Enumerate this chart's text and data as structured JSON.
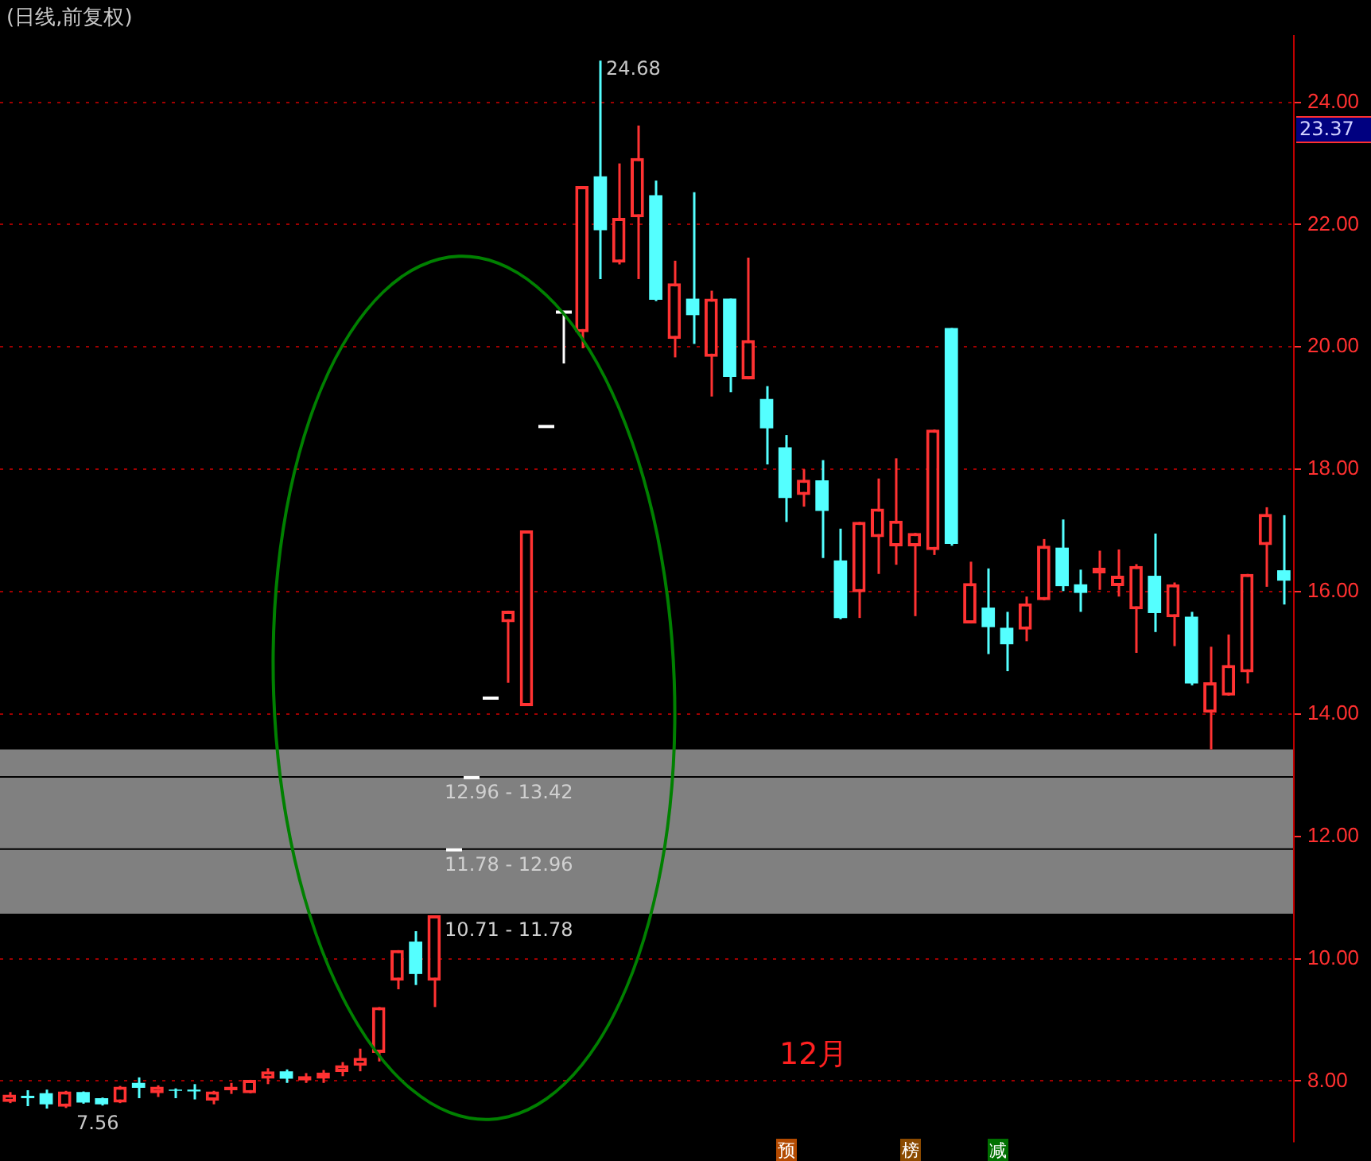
{
  "chart_data": {
    "type": "candlestick",
    "title": "(日线,前复权)",
    "categories": [
      null,
      null,
      null,
      null,
      null,
      null,
      null,
      null,
      null,
      null,
      null,
      null,
      null,
      null,
      null,
      null,
      null,
      null,
      null,
      null,
      null,
      null,
      null,
      null,
      null,
      null,
      null,
      null,
      null,
      null,
      null,
      null,
      null,
      null,
      null,
      null,
      null,
      null,
      null,
      null,
      null,
      null,
      null,
      null,
      null,
      null,
      null,
      null,
      null,
      null,
      null,
      null,
      null,
      null,
      null,
      null,
      null,
      null,
      null,
      null,
      null,
      null,
      null,
      null,
      null,
      null,
      null,
      null,
      null,
      null
    ],
    "ohlc": [
      [
        7.66,
        7.82,
        7.64,
        7.78
      ],
      [
        7.76,
        7.85,
        7.59,
        7.72
      ],
      [
        7.8,
        7.86,
        7.55,
        7.62
      ],
      [
        7.58,
        7.84,
        7.56,
        7.83
      ],
      [
        7.82,
        7.83,
        7.63,
        7.65
      ],
      [
        7.72,
        7.73,
        7.6,
        7.62
      ],
      [
        7.65,
        7.92,
        7.64,
        7.91
      ],
      [
        7.97,
        8.06,
        7.72,
        7.89
      ],
      [
        7.8,
        7.93,
        7.74,
        7.91
      ],
      [
        7.86,
        7.88,
        7.72,
        7.84
      ],
      [
        7.86,
        7.95,
        7.7,
        7.83
      ],
      [
        7.68,
        7.84,
        7.62,
        7.83
      ],
      [
        7.85,
        7.97,
        7.79,
        7.91
      ],
      [
        7.8,
        8.02,
        7.8,
        8.02
      ],
      [
        8.04,
        8.21,
        7.95,
        8.16
      ],
      [
        8.16,
        8.19,
        7.97,
        8.04
      ],
      [
        8.01,
        8.13,
        7.97,
        8.08
      ],
      [
        8.04,
        8.18,
        7.97,
        8.14
      ],
      [
        8.15,
        8.31,
        8.08,
        8.26
      ],
      [
        8.25,
        8.53,
        8.16,
        8.38
      ],
      [
        8.46,
        9.21,
        8.32,
        9.21
      ],
      [
        9.64,
        10.14,
        9.5,
        10.14
      ],
      [
        10.28,
        10.45,
        9.57,
        9.75
      ],
      [
        9.64,
        10.71,
        9.21,
        10.71
      ],
      [
        11.78,
        11.78,
        11.78,
        11.78
      ],
      [
        12.96,
        12.96,
        12.96,
        12.96
      ],
      [
        14.26,
        14.26,
        14.26,
        14.26
      ],
      [
        15.5,
        15.69,
        14.51,
        15.69
      ],
      [
        14.13,
        17.0,
        14.13,
        17.0
      ],
      [
        18.7,
        18.7,
        18.7,
        18.7
      ],
      [
        20.57,
        20.57,
        19.73,
        20.57
      ],
      [
        20.24,
        22.63,
        19.98,
        22.63
      ],
      [
        22.79,
        24.68,
        21.11,
        21.91
      ],
      [
        21.38,
        23.0,
        21.35,
        22.11
      ],
      [
        22.12,
        23.62,
        21.11,
        23.09
      ],
      [
        22.48,
        22.72,
        20.75,
        20.77
      ],
      [
        20.13,
        21.41,
        19.83,
        21.04
      ],
      [
        20.79,
        22.53,
        20.05,
        20.52
      ],
      [
        19.84,
        20.92,
        19.19,
        20.79
      ],
      [
        20.79,
        20.79,
        19.26,
        19.51
      ],
      [
        19.47,
        21.46,
        19.47,
        20.11
      ],
      [
        19.15,
        19.36,
        18.08,
        18.67
      ],
      [
        18.36,
        18.56,
        17.14,
        17.53
      ],
      [
        17.58,
        18.0,
        17.39,
        17.83
      ],
      [
        17.82,
        18.15,
        16.55,
        17.32
      ],
      [
        16.51,
        17.03,
        15.55,
        15.57
      ],
      [
        15.99,
        17.14,
        15.57,
        17.14
      ],
      [
        16.89,
        17.85,
        16.29,
        17.36
      ],
      [
        16.74,
        18.18,
        16.44,
        17.16
      ],
      [
        16.74,
        16.96,
        15.6,
        16.96
      ],
      [
        16.68,
        18.65,
        16.6,
        18.65
      ],
      [
        20.31,
        20.31,
        16.75,
        16.78
      ],
      [
        15.48,
        16.49,
        15.48,
        16.14
      ],
      [
        15.74,
        16.38,
        14.98,
        15.42
      ],
      [
        15.41,
        15.67,
        14.7,
        15.14
      ],
      [
        15.38,
        15.92,
        15.19,
        15.81
      ],
      [
        15.86,
        16.86,
        15.86,
        16.75
      ],
      [
        16.72,
        17.18,
        16.01,
        16.09
      ],
      [
        16.12,
        16.36,
        15.67,
        15.98
      ],
      [
        16.3,
        16.67,
        16.03,
        16.39
      ],
      [
        16.09,
        16.69,
        15.92,
        16.26
      ],
      [
        15.71,
        16.45,
        15.0,
        16.42
      ],
      [
        16.26,
        16.95,
        15.34,
        15.65
      ],
      [
        15.58,
        16.15,
        15.11,
        16.12
      ],
      [
        15.59,
        15.67,
        14.47,
        14.5
      ],
      [
        14.02,
        15.1,
        13.42,
        14.52
      ],
      [
        14.3,
        15.3,
        14.3,
        14.8
      ],
      [
        14.68,
        16.29,
        14.5,
        16.29
      ],
      [
        16.76,
        17.38,
        16.08,
        17.27
      ],
      [
        16.35,
        17.25,
        15.79,
        16.18
      ]
    ],
    "colors": [
      "#ff3232",
      "#54ffff",
      "#54ffff",
      "#ff3232",
      "#54ffff",
      "#54ffff",
      "#ff3232",
      "#54ffff",
      "#ff3232",
      "#54ffff",
      "#54ffff",
      "#ff3232",
      "#ff3232",
      "#ff3232",
      "#ff3232",
      "#54ffff",
      "#ff3232",
      "#ff3232",
      "#ff3232",
      "#ff3232",
      "#ff3232",
      "#ff3232",
      "#54ffff",
      "#ff3232",
      "#ffffff",
      "#ffffff",
      "#ffffff",
      "#ff3232",
      "#ff3232",
      "#ffffff",
      "#ffffff",
      "#ff3232",
      "#54ffff",
      "#ff3232",
      "#ff3232",
      "#54ffff",
      "#ff3232",
      "#54ffff",
      "#ff3232",
      "#54ffff",
      "#ff3232",
      "#54ffff",
      "#54ffff",
      "#ff3232",
      "#54ffff",
      "#54ffff",
      "#ff3232",
      "#ff3232",
      "#ff3232",
      "#ff3232",
      "#ff3232",
      "#54ffff",
      "#ff3232",
      "#54ffff",
      "#54ffff",
      "#ff3232",
      "#ff3232",
      "#54ffff",
      "#54ffff",
      "#ff3232",
      "#ff3232",
      "#ff3232",
      "#54ffff",
      "#ff3232",
      "#54ffff",
      "#ff3232",
      "#ff3232",
      "#ff3232",
      "#ff3232",
      "#54ffff"
    ],
    "ylim": [
      7.0,
      25.1
    ],
    "yticks": [
      {
        "value": 8,
        "label": "8.00"
      },
      {
        "value": 10,
        "label": "10.00"
      },
      {
        "value": 12,
        "label": "12.00"
      },
      {
        "value": 14,
        "label": "14.00"
      },
      {
        "value": 16,
        "label": "16.00"
      },
      {
        "value": 18,
        "label": "18.00"
      },
      {
        "value": 20,
        "label": "20.00"
      },
      {
        "value": 22,
        "label": "22.00"
      },
      {
        "value": 24,
        "label": "24.00"
      }
    ],
    "grid": "y",
    "tick_labels": "y",
    "bands": [
      {
        "axis": "y",
        "from": 12.96,
        "to": 13.42,
        "label": "12.96 - 13.42",
        "color": "#808080"
      },
      {
        "axis": "y",
        "from": 11.78,
        "to": 12.96,
        "label": "11.78 - 12.96",
        "color": "#808080"
      },
      {
        "axis": "y",
        "from": 10.71,
        "to": 11.78,
        "label": "10.71 - 11.78",
        "color": "#808080"
      }
    ],
    "annotations": [
      "24.68",
      "7.56",
      "23.37",
      "12月",
      "预",
      "榜",
      "减"
    ]
  }
}
